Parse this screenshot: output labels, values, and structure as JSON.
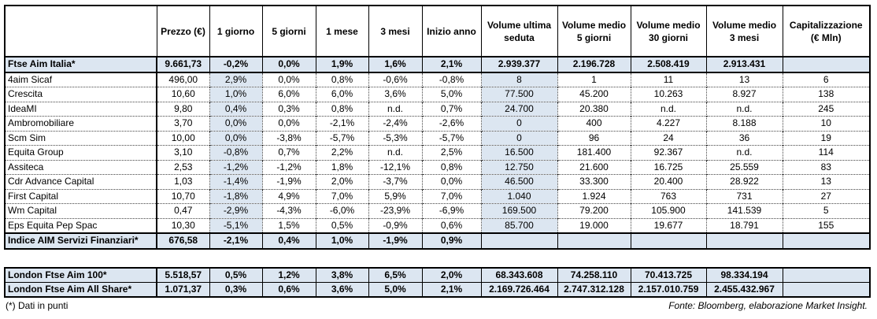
{
  "headers": [
    "",
    "Prezzo (€)",
    "1 giorno",
    "5 giorni",
    "1 mese",
    "3 mesi",
    "Inizio anno",
    "Volume ultima seduta",
    "Volume medio 5 giorni",
    "Volume medio 30 giorni",
    "Volume medio 3 mesi",
    "Capitalizzazione (€ Mln)"
  ],
  "index_row": [
    "Ftse Aim Italia*",
    "9.661,73",
    "-0,2%",
    "0,0%",
    "1,9%",
    "1,6%",
    "2,1%",
    "2.939.377",
    "2.196.728",
    "2.508.419",
    "2.913.431",
    ""
  ],
  "rows": [
    [
      "4aim Sicaf",
      "496,00",
      "2,9%",
      "0,0%",
      "0,8%",
      "-0,6%",
      "-0,8%",
      "8",
      "1",
      "11",
      "13",
      "6"
    ],
    [
      "Crescita",
      "10,60",
      "1,0%",
      "6,0%",
      "6,0%",
      "3,6%",
      "5,0%",
      "77.500",
      "45.200",
      "10.263",
      "8.927",
      "138"
    ],
    [
      "IdeaMI",
      "9,80",
      "0,4%",
      "0,3%",
      "0,8%",
      "n.d.",
      "0,7%",
      "24.700",
      "20.380",
      "n.d.",
      "n.d.",
      "245"
    ],
    [
      "Ambromobiliare",
      "3,70",
      "0,0%",
      "0,0%",
      "-2,1%",
      "-2,4%",
      "-2,6%",
      "0",
      "400",
      "4.227",
      "8.188",
      "10"
    ],
    [
      "Scm Sim",
      "10,00",
      "0,0%",
      "-3,8%",
      "-5,7%",
      "-5,3%",
      "-5,7%",
      "0",
      "96",
      "24",
      "36",
      "19"
    ],
    [
      "Equita Group",
      "3,10",
      "-0,8%",
      "0,7%",
      "2,2%",
      "n.d.",
      "2,5%",
      "16.500",
      "181.400",
      "92.367",
      "n.d.",
      "114"
    ],
    [
      "Assiteca",
      "2,53",
      "-1,2%",
      "-1,2%",
      "1,8%",
      "-12,1%",
      "0,8%",
      "12.750",
      "21.600",
      "16.725",
      "25.559",
      "83"
    ],
    [
      "Cdr Advance Capital",
      "1,03",
      "-1,4%",
      "-1,9%",
      "2,0%",
      "-3,7%",
      "0,0%",
      "46.500",
      "33.300",
      "20.400",
      "28.922",
      "13"
    ],
    [
      "First Capital",
      "10,70",
      "-1,8%",
      "4,9%",
      "7,0%",
      "5,9%",
      "7,0%",
      "1.040",
      "1.924",
      "763",
      "731",
      "27"
    ],
    [
      "Wm Capital",
      "0,47",
      "-2,9%",
      "-4,3%",
      "-6,0%",
      "-23,9%",
      "-6,9%",
      "169.500",
      "79.200",
      "105.900",
      "141.539",
      "5"
    ],
    [
      "Eps Equita Pep Spac",
      "10,30",
      "-5,1%",
      "1,5%",
      "0,5%",
      "-0,9%",
      "0,6%",
      "85.700",
      "19.000",
      "19.677",
      "18.791",
      "155"
    ]
  ],
  "sector_row": [
    "Indice AIM Servizi Finanziari*",
    "676,58",
    "-2,1%",
    "0,4%",
    "1,0%",
    "-1,9%",
    "0,9%",
    "",
    "",
    "",
    "",
    ""
  ],
  "london_rows": [
    [
      "London Ftse Aim 100*",
      "5.518,57",
      "0,5%",
      "1,2%",
      "3,8%",
      "6,5%",
      "2,0%",
      "68.343.608",
      "74.258.110",
      "70.413.725",
      "98.334.194",
      ""
    ],
    [
      "London Ftse Aim All Share*",
      "1.071,37",
      "0,3%",
      "0,6%",
      "3,6%",
      "5,0%",
      "2,1%",
      "2.169.726.464",
      "2.747.312.128",
      "2.157.010.759",
      "2.455.432.967",
      ""
    ]
  ],
  "footer": {
    "note": "(*) Dati in punti",
    "source": "Fonte: Bloomberg, elaborazione Market Insight."
  },
  "colors": {
    "highlight": "#dce6f1",
    "border": "#000000"
  }
}
